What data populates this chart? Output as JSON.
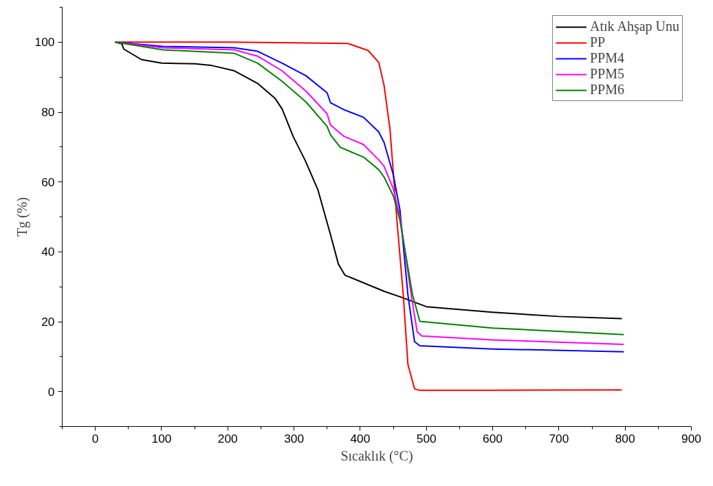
{
  "chart_data": {
    "type": "line",
    "xlabel": "Sıcaklık (°C)",
    "ylabel": "Tg (%)",
    "xlim": [
      -50,
      900
    ],
    "ylim": [
      -10,
      110
    ],
    "xticks": [
      0,
      100,
      200,
      300,
      400,
      500,
      600,
      700,
      800,
      900
    ],
    "yticks": [
      0,
      20,
      40,
      60,
      80,
      100
    ],
    "grid": false,
    "legend": "top right",
    "marker": "none",
    "line_style": "solid",
    "series": [
      {
        "name": "Atık Ahşap Unu",
        "color": "#000000",
        "x": [
          30,
          40,
          43,
          70,
          100,
          150,
          174,
          210,
          245,
          271,
          282,
          299,
          317,
          336,
          355,
          367,
          377,
          436,
          462,
          500,
          600,
          700,
          795
        ],
        "values": [
          100,
          99.5,
          98,
          95,
          94,
          93.8,
          93.4,
          91.8,
          88.2,
          84,
          80.9,
          72.9,
          66.1,
          57.8,
          45,
          36.5,
          33.3,
          28.7,
          27,
          24.3,
          22.7,
          21.5,
          20.9
        ]
      },
      {
        "name": "PP",
        "color": "#ff0000",
        "x": [
          35,
          100,
          200,
          300,
          382,
          412,
          428,
          436,
          445,
          455,
          465,
          472,
          482,
          489,
          600,
          795
        ],
        "values": [
          100,
          100,
          100,
          99.8,
          99.6,
          97.6,
          94.2,
          87.6,
          75,
          50,
          27.7,
          7.8,
          0.8,
          0.4,
          0.4,
          0.5
        ]
      },
      {
        "name": "PPM4",
        "color": "#0000ff",
        "x": [
          30,
          102,
          210,
          245,
          282,
          318,
          350,
          355,
          375,
          405,
          428,
          436,
          450,
          460,
          472,
          482,
          490,
          600,
          798
        ],
        "values": [
          100,
          98.8,
          98.4,
          97.4,
          94,
          90.4,
          85.5,
          82.7,
          80.7,
          78.5,
          74.3,
          71.3,
          62,
          52,
          27.7,
          14.3,
          13.1,
          12.2,
          11.4
        ]
      },
      {
        "name": "PPM5",
        "color": "#ff00ff",
        "x": [
          30,
          102,
          210,
          245,
          282,
          318,
          350,
          355,
          375,
          405,
          428,
          436,
          450,
          460,
          477,
          486,
          493,
          600,
          798
        ],
        "values": [
          100,
          98.4,
          97.8,
          96,
          91.8,
          86,
          79.5,
          76.3,
          73.1,
          70.7,
          66.3,
          64.5,
          58,
          50,
          27.7,
          17.1,
          15.9,
          14.8,
          13.5
        ]
      },
      {
        "name": "PPM6",
        "color": "#008000",
        "x": [
          30,
          102,
          210,
          245,
          282,
          318,
          350,
          355,
          370,
          405,
          428,
          436,
          450,
          460,
          479,
          490,
          600,
          798
        ],
        "values": [
          100,
          97.8,
          96.8,
          94,
          88.8,
          82.9,
          75.9,
          73.5,
          69.9,
          67.1,
          63.5,
          61.4,
          56,
          49,
          27.7,
          20.1,
          18.2,
          16.3
        ]
      }
    ]
  }
}
